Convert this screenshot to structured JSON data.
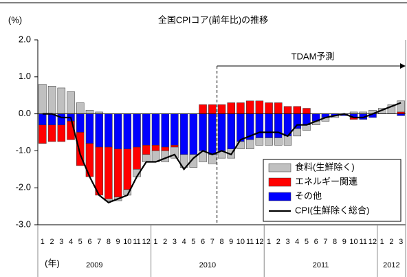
{
  "chart_data": {
    "type": "bar",
    "title": "全国CPIコア(前年比)の推移",
    "y_label": "(%)",
    "x_label": "(年)",
    "annotation": "TDAM予測",
    "categories": [
      "1",
      "2",
      "3",
      "4",
      "5",
      "6",
      "7",
      "8",
      "9",
      "10",
      "11",
      "12",
      "1",
      "2",
      "3",
      "4",
      "5",
      "6",
      "7",
      "8",
      "9",
      "10",
      "11",
      "12",
      "1",
      "2",
      "3",
      "4",
      "5",
      "6",
      "7",
      "8",
      "9",
      "10",
      "11",
      "12",
      "1",
      "2",
      "3"
    ],
    "years": [
      "2009",
      "2010",
      "2011",
      "2012"
    ],
    "ylim": [
      -3.0,
      2.0
    ],
    "yticks": [
      {
        "value": 2.0,
        "label": "2.0"
      },
      {
        "value": 1.0,
        "label": "1.0"
      },
      {
        "value": 0.0,
        "label": "0.0"
      },
      {
        "value": -1.0,
        "label": "-1.0"
      },
      {
        "value": -2.0,
        "label": "-2.0"
      },
      {
        "value": -3.0,
        "label": "-3.0"
      }
    ],
    "legend": "lower right",
    "series": [
      {
        "name": "食料(生鮮除く)",
        "color": "#c0c0c0",
        "values": [
          0.8,
          0.75,
          0.7,
          0.6,
          0.3,
          0.1,
          0.05,
          -0.05,
          -0.1,
          -0.15,
          -0.2,
          -0.2,
          -0.3,
          -0.3,
          -0.3,
          -0.35,
          -0.35,
          -0.3,
          -0.25,
          -0.2,
          -0.25,
          -0.2,
          -0.25,
          -0.2,
          -0.2,
          -0.2,
          -0.25,
          -0.2,
          -0.15,
          -0.1,
          -0.1,
          -0.05,
          0.0,
          0.05,
          0.05,
          0.1,
          0.15,
          0.25,
          0.3
        ]
      },
      {
        "name": "エネルギー関連",
        "color": "#ff0000",
        "values": [
          -0.5,
          -0.45,
          -0.45,
          -0.5,
          -0.9,
          -0.9,
          -1.3,
          -1.4,
          -1.3,
          -1.1,
          -0.6,
          -0.25,
          -0.15,
          -0.1,
          -0.05,
          0.0,
          0.0,
          0.25,
          0.25,
          0.25,
          0.3,
          0.3,
          0.35,
          0.35,
          0.3,
          0.3,
          0.2,
          0.2,
          0.15,
          0.0,
          0.0,
          0.0,
          0.0,
          -0.05,
          0.0,
          0.0,
          0.0,
          0.0,
          0.05
        ]
      },
      {
        "name": "その他",
        "color": "#0000ff",
        "values": [
          -0.3,
          -0.3,
          -0.3,
          -0.2,
          -0.5,
          -0.8,
          -0.9,
          -0.9,
          -0.95,
          -0.95,
          -0.9,
          -0.85,
          -0.85,
          -0.9,
          -0.85,
          -1.1,
          -1.1,
          -1.0,
          -1.1,
          -1.0,
          -0.95,
          -0.75,
          -0.7,
          -0.65,
          -0.65,
          -0.65,
          -0.6,
          -0.4,
          -0.3,
          -0.2,
          -0.1,
          -0.05,
          -0.05,
          -0.1,
          -0.15,
          -0.1,
          0.0,
          0.0,
          -0.05
        ]
      },
      {
        "name": "CPI(生鮮除く総合)",
        "color": "#000000",
        "type": "line",
        "values": [
          0.0,
          0.0,
          -0.1,
          -0.1,
          -1.1,
          -1.7,
          -2.2,
          -2.4,
          -2.3,
          -2.2,
          -1.7,
          -1.3,
          -1.3,
          -1.2,
          -1.1,
          -1.5,
          -1.2,
          -1.0,
          -1.1,
          -1.0,
          -1.1,
          -0.7,
          -0.6,
          -0.5,
          -0.5,
          -0.5,
          -0.6,
          -0.3,
          -0.3,
          -0.2,
          -0.1,
          -0.05,
          0.0,
          -0.1,
          -0.1,
          0.0,
          0.1,
          0.2,
          0.3
        ]
      }
    ]
  }
}
